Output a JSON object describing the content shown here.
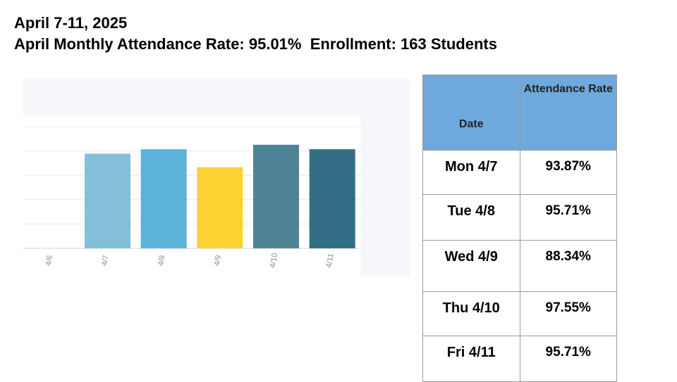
{
  "header": {
    "line1": "April 7-11, 2025",
    "line2": "April Monthly Attendance Rate: 95.01%  Enrollment: 163 Students"
  },
  "chart_data": {
    "type": "bar",
    "categories": [
      "4/6",
      "4/7",
      "4/8",
      "4/9",
      "4/10",
      "4/11"
    ],
    "values": [
      null,
      93.87,
      95.71,
      88.34,
      97.55,
      95.71
    ],
    "colors": [
      null,
      "#83bfd9",
      "#5bb3da",
      "#fcd232",
      "#4e8396",
      "#326f86"
    ],
    "grid": true,
    "ylim": [
      55,
      105
    ]
  },
  "table": {
    "headers": [
      "Date",
      "Attendance Rate"
    ],
    "header_color": "#6fa8dc",
    "rows": [
      {
        "date": "Mon 4/7",
        "rate": "93.87%"
      },
      {
        "date": "Tue 4/8",
        "rate": "95.71%"
      },
      {
        "date": "Wed 4/9",
        "rate": "88.34%"
      },
      {
        "date": "Thu 4/10",
        "rate": "97.55%"
      },
      {
        "date": "Fri 4/11",
        "rate": "95.71%"
      }
    ]
  }
}
